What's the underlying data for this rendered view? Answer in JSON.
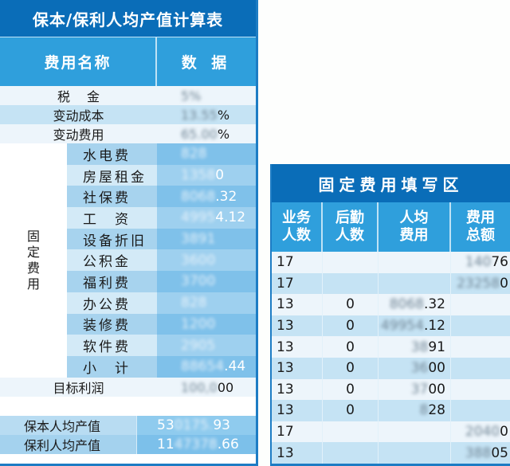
{
  "left_table": {
    "title": "保本/保利人均产值计算表",
    "header": {
      "name_col": "费用名称",
      "value_col": "数 据"
    },
    "top_rows": [
      {
        "name": "税　 金",
        "value_blur": "5%",
        "value_tail": ""
      },
      {
        "name": "变动成本",
        "value_blur": "13.55",
        "value_tail": "%"
      },
      {
        "name": "变动费用",
        "value_blur": "65.00",
        "value_tail": "%"
      }
    ],
    "fixed_label": [
      "固",
      "定",
      "费",
      "用"
    ],
    "fixed_rows": [
      {
        "name": "水电费",
        "value_blur": "828",
        "value_tail": ""
      },
      {
        "name": "房屋租金",
        "value_blur": "1358",
        "value_tail": "0"
      },
      {
        "name": "社保费",
        "value_blur": "8068",
        "value_tail": ".32"
      },
      {
        "name": "工　资",
        "value_blur": "4995",
        "value_tail": "4.12"
      },
      {
        "name": "设备折旧",
        "value_blur": "3891",
        "value_tail": ""
      },
      {
        "name": "公积金",
        "value_blur": "3600",
        "value_tail": ""
      },
      {
        "name": "福利费",
        "value_blur": "3700",
        "value_tail": ""
      },
      {
        "name": "办公费",
        "value_blur": "828",
        "value_tail": ""
      },
      {
        "name": "装修费",
        "value_blur": "1200",
        "value_tail": ""
      },
      {
        "name": "软件费",
        "value_blur": "2905",
        "value_tail": ""
      },
      {
        "name": "小　计",
        "value_blur": "88654",
        "value_tail": ".44"
      }
    ],
    "target_profit": {
      "name": "目标利润",
      "value_blur": "100,0",
      "value_tail": "00"
    },
    "per_capita": [
      {
        "name": "保本人均产值",
        "value_head": "53",
        "value_blur": "0175.",
        "value_tail": "93"
      },
      {
        "name": "保利人均产值",
        "value_head": "11",
        "value_blur": "47378",
        "value_tail": ".66"
      }
    ]
  },
  "right_table": {
    "title": "固定费用填写区",
    "headers": [
      "业务\n人数",
      "后勤\n人数",
      "人均\n费用",
      "费用\n总额"
    ],
    "header_lines": [
      [
        "业务",
        "人数"
      ],
      [
        "后勤",
        "人数"
      ],
      [
        "人均",
        "费用"
      ],
      [
        "费用",
        "总额"
      ]
    ],
    "rows": [
      {
        "sales": "17",
        "logistics": "",
        "per_blur": "",
        "per_tail": "",
        "total_blur": "140",
        "total_tail": "76"
      },
      {
        "sales": "17",
        "logistics": "",
        "per_blur": "",
        "per_tail": "",
        "total_blur": "23258",
        "total_tail": "0"
      },
      {
        "sales": "13",
        "logistics": "0",
        "per_blur": "8068",
        "per_tail": ".32",
        "total_blur": "",
        "total_tail": ""
      },
      {
        "sales": "13",
        "logistics": "0",
        "per_blur": "49954",
        "per_tail": ".12",
        "total_blur": "",
        "total_tail": ""
      },
      {
        "sales": "13",
        "logistics": "0",
        "per_blur": "38",
        "per_tail": "91",
        "total_blur": "",
        "total_tail": ""
      },
      {
        "sales": "13",
        "logistics": "0",
        "per_blur": "36",
        "per_tail": "00",
        "total_blur": "",
        "total_tail": ""
      },
      {
        "sales": "13",
        "logistics": "0",
        "per_blur": "37",
        "per_tail": "00",
        "total_blur": "",
        "total_tail": ""
      },
      {
        "sales": "13",
        "logistics": "0",
        "per_blur": "8",
        "per_tail": "28",
        "total_blur": "",
        "total_tail": ""
      },
      {
        "sales": "17",
        "logistics": "",
        "per_blur": "",
        "per_tail": "",
        "total_blur": "2040",
        "total_tail": "0"
      },
      {
        "sales": "13",
        "logistics": "",
        "per_blur": "",
        "per_tail": "",
        "total_blur": "388",
        "total_tail": "05"
      }
    ]
  },
  "colors": {
    "title_bg": "#0a6db8",
    "header_bg": "#2f9fdc",
    "row_light": "#edf5fb",
    "row_mid": "#c5e3f4",
    "fixed_value_a": "#7fc1ea",
    "fixed_value_b": "#9ed0ef"
  }
}
